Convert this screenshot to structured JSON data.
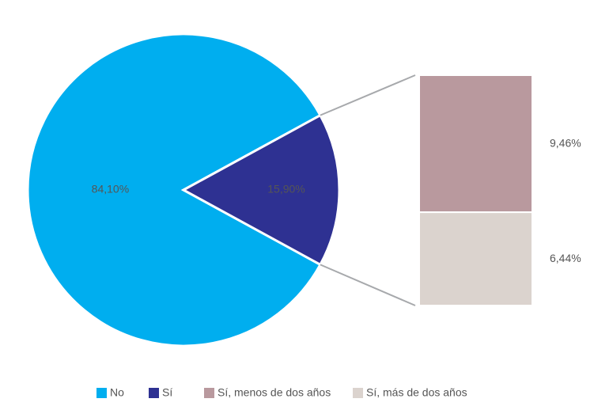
{
  "chart_data": {
    "type": "pie",
    "categories": [
      "No",
      "Sí"
    ],
    "values": [
      84.1,
      15.9
    ],
    "value_labels": [
      "84,10%",
      "15,90%"
    ],
    "colors": [
      "#00aeef",
      "#2e3192"
    ],
    "breakdown": {
      "type": "bar",
      "categories": [
        "Sí, menos de dos años",
        "Sí, más de dos años"
      ],
      "values": [
        9.46,
        6.44
      ],
      "value_labels": [
        "9,46%",
        "6,44%"
      ],
      "colors": [
        "#b9999e",
        "#dbd3ce"
      ]
    },
    "legend": "bottom"
  }
}
